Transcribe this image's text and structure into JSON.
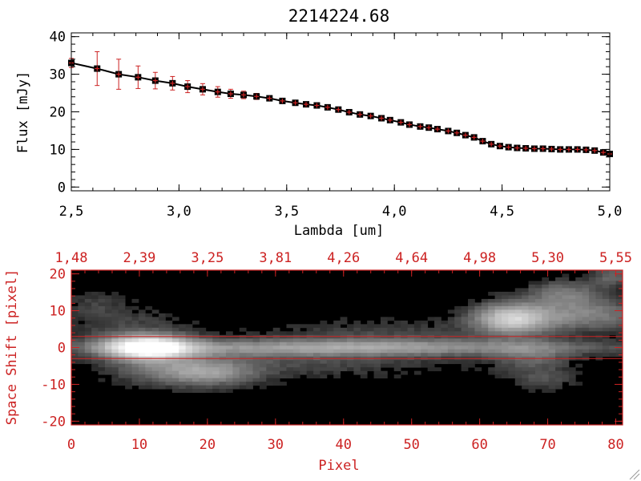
{
  "chart_data": [
    {
      "type": "line",
      "title": "2214224.68",
      "xlabel": "Lambda [um]",
      "ylabel": "Flux [mJy]",
      "xlim": [
        2.5,
        5.0
      ],
      "ylim": [
        -1,
        41
      ],
      "x_ticks": [
        2.5,
        3.0,
        3.5,
        4.0,
        4.5,
        5.0
      ],
      "x_tick_labels": [
        "2,5",
        "3,0",
        "3,5",
        "4,0",
        "4,5",
        "5,0"
      ],
      "y_ticks": [
        0,
        10,
        20,
        30,
        40
      ],
      "y_tick_labels": [
        "0",
        "10",
        "20",
        "30",
        "40"
      ],
      "colors": {
        "line": "#000000",
        "marker": "#000000",
        "errorbar": "#cc2222"
      },
      "series": [
        {
          "x": [
            2.5,
            2.62,
            2.72,
            2.81,
            2.89,
            2.97,
            3.04,
            3.11,
            3.18,
            3.24,
            3.3,
            3.36,
            3.42,
            3.48,
            3.54,
            3.59,
            3.64,
            3.69,
            3.74,
            3.79,
            3.84,
            3.89,
            3.94,
            3.98,
            4.03,
            4.07,
            4.12,
            4.16,
            4.2,
            4.25,
            4.29,
            4.33,
            4.37,
            4.41,
            4.45,
            4.49,
            4.53,
            4.57,
            4.61,
            4.65,
            4.69,
            4.73,
            4.77,
            4.81,
            4.85,
            4.89,
            4.93,
            4.97,
            5.0
          ],
          "y": [
            33.0,
            31.5,
            30.0,
            29.2,
            28.3,
            27.6,
            26.7,
            26.0,
            25.3,
            24.8,
            24.5,
            24.1,
            23.6,
            22.9,
            22.4,
            22.0,
            21.7,
            21.2,
            20.6,
            19.9,
            19.3,
            18.9,
            18.3,
            17.8,
            17.2,
            16.6,
            16.1,
            15.8,
            15.4,
            14.9,
            14.4,
            13.8,
            13.2,
            12.2,
            11.4,
            10.9,
            10.6,
            10.4,
            10.3,
            10.2,
            10.2,
            10.1,
            10.0,
            10.0,
            10.0,
            9.9,
            9.7,
            9.2,
            8.8
          ],
          "err": [
            1.2,
            4.5,
            4.0,
            3.0,
            2.2,
            1.8,
            1.6,
            1.5,
            1.4,
            1.2,
            1.0,
            0.8,
            0.6,
            0.5,
            0.4,
            0.4,
            0.4,
            0.4,
            0.4,
            0.4,
            0.4,
            0.4,
            0.4,
            0.4,
            0.4,
            0.4,
            0.4,
            0.4,
            0.4,
            0.4,
            0.4,
            0.4,
            0.4,
            0.4,
            0.4,
            0.4,
            0.4,
            0.4,
            0.4,
            0.4,
            0.4,
            0.4,
            0.4,
            0.4,
            0.4,
            0.4,
            0.4,
            0.5,
            0.6
          ]
        }
      ]
    },
    {
      "type": "heatmap",
      "xlabel": "Pixel",
      "ylabel": "Space Shift [pixel]",
      "xlim": [
        0,
        81
      ],
      "ylim": [
        -21,
        21
      ],
      "x_ticks": [
        0,
        10,
        20,
        30,
        40,
        50,
        60,
        70,
        80
      ],
      "x_tick_labels": [
        "0",
        "10",
        "20",
        "30",
        "40",
        "50",
        "60",
        "70",
        "80"
      ],
      "y_ticks": [
        -20,
        -10,
        0,
        10,
        20
      ],
      "y_tick_labels": [
        "-20",
        "-10",
        "0",
        "10",
        "20"
      ],
      "top_ticks": [
        0,
        10,
        20,
        30,
        40,
        50,
        60,
        70,
        80
      ],
      "top_tick_labels": [
        "1,48",
        "2,39",
        "3,25",
        "3,81",
        "4,26",
        "4,64",
        "4,98",
        "5,30",
        "5,55"
      ],
      "extraction_window": [
        -3,
        3
      ],
      "colors": {
        "frame": "#cc2222",
        "window": "#cc2222",
        "background": "#000000"
      },
      "features": [
        {
          "x": 11,
          "y": 0,
          "peak": 1.0,
          "sx": 4.5,
          "sy": 2.4
        },
        {
          "x": 40,
          "y": 0,
          "peak": 0.45,
          "sx": 28,
          "sy": 1.6
        },
        {
          "x": 65,
          "y": 8,
          "peak": 0.7,
          "sx": 4,
          "sy": 3
        },
        {
          "x": 76,
          "y": 9,
          "peak": 0.35,
          "sx": 6,
          "sy": 3
        },
        {
          "x": 73,
          "y": 15,
          "peak": 0.3,
          "sx": 4,
          "sy": 2.5
        },
        {
          "x": 20,
          "y": -7,
          "peak": 0.42,
          "sx": 5,
          "sy": 2.6
        },
        {
          "x": 12,
          "y": -6,
          "peak": 0.2,
          "sx": 5,
          "sy": 3
        },
        {
          "x": 35,
          "y": -4,
          "peak": 0.14,
          "sx": 14,
          "sy": 3
        },
        {
          "x": 68,
          "y": -3,
          "peak": 0.22,
          "sx": 4,
          "sy": 3
        },
        {
          "x": 70,
          "y": -9,
          "peak": 0.15,
          "sx": 3,
          "sy": 2
        },
        {
          "x": 8,
          "y": 6,
          "peak": 0.12,
          "sx": 6,
          "sy": 4
        },
        {
          "x": 3,
          "y": 12,
          "peak": 0.1,
          "sx": 3,
          "sy": 3
        },
        {
          "x": 45,
          "y": 4,
          "peak": 0.12,
          "sx": 12,
          "sy": 3
        },
        {
          "x": 80,
          "y": 20,
          "peak": 0.25,
          "sx": 2,
          "sy": 2
        }
      ]
    }
  ]
}
